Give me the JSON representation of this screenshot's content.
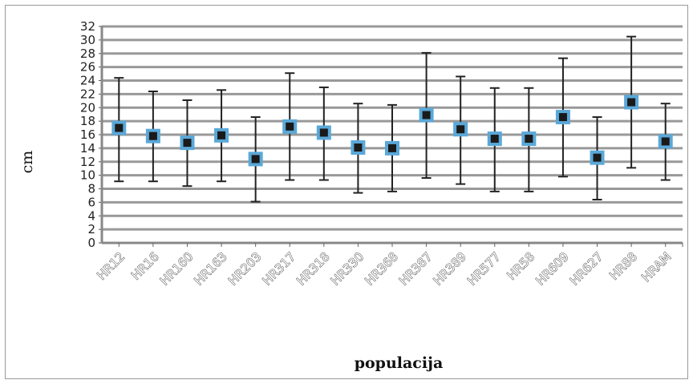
{
  "chart_data": {
    "type": "scatter",
    "title": "",
    "xlabel": "populacija",
    "ylabel": "cm",
    "ylim": [
      0,
      32
    ],
    "yticks": [
      0,
      2,
      4,
      6,
      8,
      10,
      12,
      14,
      16,
      18,
      20,
      22,
      24,
      26,
      28,
      30,
      32
    ],
    "grid": true,
    "legend": "none",
    "categories": [
      "HR12",
      "HR16",
      "HR160",
      "HR163",
      "HR203",
      "HR317",
      "HR318",
      "HR330",
      "HR368",
      "HR387",
      "HR389",
      "HR577",
      "HR58",
      "HR609",
      "HR627",
      "HR88",
      "HRAM"
    ],
    "values": [
      17.0,
      15.8,
      14.8,
      15.9,
      12.4,
      17.2,
      16.3,
      14.1,
      14.0,
      18.9,
      16.8,
      15.4,
      15.4,
      18.6,
      12.6,
      20.8,
      15.0
    ],
    "error_low": [
      9.1,
      9.1,
      8.4,
      9.1,
      6.1,
      9.3,
      9.3,
      7.4,
      7.6,
      9.6,
      8.7,
      7.6,
      7.6,
      9.8,
      6.4,
      11.1,
      9.3
    ],
    "error_high": [
      24.4,
      22.4,
      21.1,
      22.6,
      18.6,
      25.1,
      23.0,
      20.6,
      20.4,
      28.1,
      24.6,
      22.9,
      22.9,
      27.3,
      18.6,
      30.5,
      20.6
    ],
    "colors": {
      "marker_fill": "#1a1a1a",
      "marker_border": "#5aa8d8",
      "grid": "#999999",
      "error_bar": "#222222"
    }
  }
}
